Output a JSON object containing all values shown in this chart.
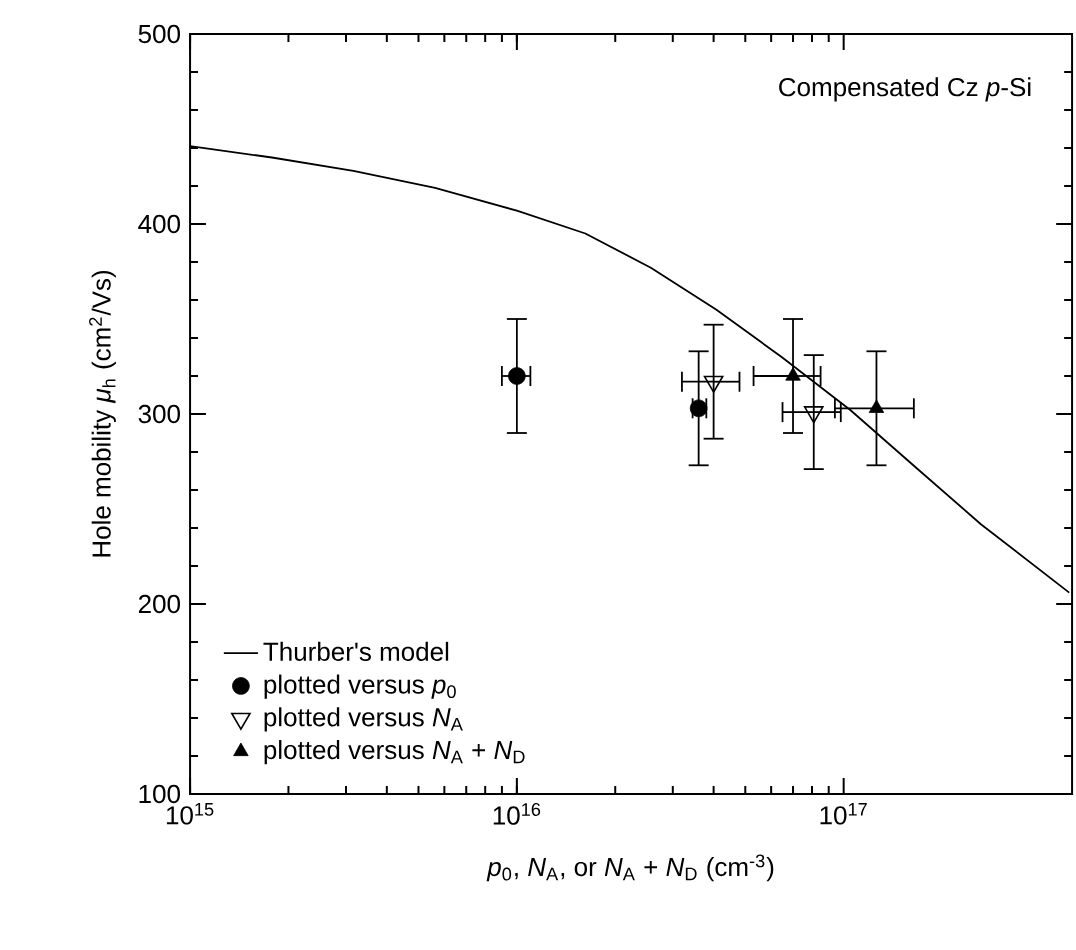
{
  "chart_data": {
    "type": "scatter",
    "xlabel": "*p*$_{0}$, *N*$_{A}$, or *N*$_{A}$ + *N*$_{D}$ (cm$^{-3}$)",
    "ylabel": "Hole mobility *μ*$_{h}$ (cm$^{2}$/Vs)",
    "annotations": [
      "Compensated Cz *p*-Si"
    ],
    "log": "x",
    "xlim": [
      1000000000000000.0,
      5e+17
    ],
    "xticks": [
      {
        "value": 1000000000000000.0,
        "label": "10$^{15}$"
      },
      {
        "value": 1e+16,
        "label": "10$^{16}$"
      },
      {
        "value": 1e+17,
        "label": "10$^{17}$"
      }
    ],
    "ylim": [
      100,
      500
    ],
    "yticks": [
      100,
      200,
      300,
      400,
      500
    ],
    "grid": false,
    "legend": "bottom left",
    "series": [
      {
        "name": "Thurber's model",
        "type": "line",
        "color": "#000000",
        "marker": "none",
        "line_style": "solid",
        "x": [
          1000000000000000.0,
          1780000000000000.0,
          3160000000000000.0,
          5620000000000000.0,
          1e+16,
          1.62e+16,
          2.57e+16,
          4.07e+16,
          6.46e+16,
          1.05e+17,
          1.66e+17,
          2.63e+17,
          4.9e+17
        ],
        "values": [
          441,
          435,
          428,
          419,
          407,
          395,
          377,
          355,
          330,
          302,
          272,
          242,
          206
        ]
      },
      {
        "name": "plotted versus *p*$_{0}$",
        "color": "#000000",
        "marker": "circle",
        "x": [
          1e+16,
          3.6e+16
        ],
        "values": [
          320,
          303
        ],
        "errors": [
          30,
          30
        ],
        "xerrors": [
          [
            9000000000000000.0,
            1.1e+16
          ],
          [
            3.45e+16,
            3.8e+16
          ]
        ]
      },
      {
        "name": "plotted versus *N*$_{A}$",
        "color": "#000000",
        "marker": "triangle-down-open",
        "x": [
          4e+16,
          8.1e+16
        ],
        "values": [
          317,
          301
        ],
        "errors": [
          30,
          30
        ],
        "xerrors": [
          [
            3.2e+16,
            4.8e+16
          ],
          [
            6.5e+16,
            9.8e+16
          ]
        ]
      },
      {
        "name": "plotted versus *N*$_{A}$ + *N*$_{D}$",
        "color": "#000000",
        "marker": "triangle",
        "x": [
          7e+16,
          1.26e+17
        ],
        "values": [
          320,
          303
        ],
        "errors": [
          30,
          30
        ],
        "xerrors": [
          [
            5.3e+16,
            8.5e+16
          ],
          [
            9.4e+16,
            1.64e+17
          ]
        ]
      }
    ]
  }
}
